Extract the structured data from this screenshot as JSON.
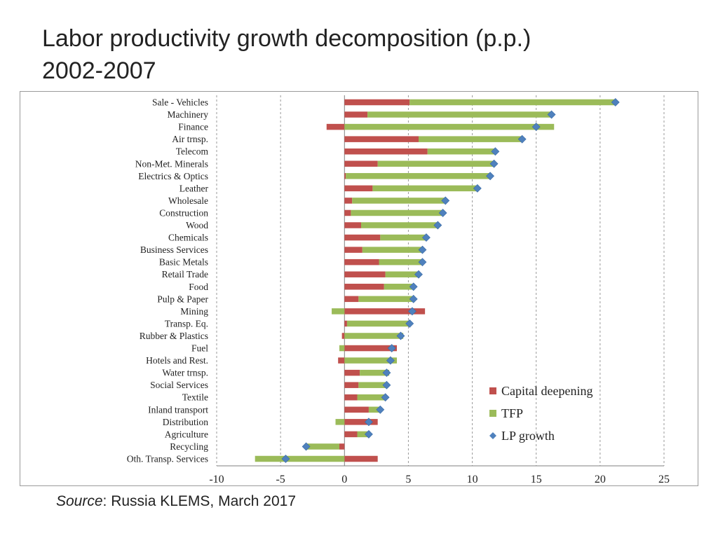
{
  "title": {
    "line1": "Labor productivity growth decomposition (p.p.)",
    "line2": "2002-2007"
  },
  "source": {
    "label": "Source",
    "text": ": Russia KLEMS, March 2017"
  },
  "colors": {
    "capital": "#c0504d",
    "tfp": "#9bbb59",
    "lp": "#4f81bd",
    "grid": "#999999",
    "axis": "#7f7f7f"
  },
  "chart_data": {
    "type": "bar",
    "orientation": "horizontal",
    "stacked": true,
    "title": "Labor productivity growth decomposition (p.p.) 2002-2007",
    "xlabel": "",
    "ylabel": "",
    "xlim": [
      -10,
      25
    ],
    "xticks": [
      -10,
      -5,
      0,
      5,
      10,
      15,
      20,
      25
    ],
    "xtick_labels": [
      "-10",
      "-5",
      "0",
      "5",
      "10",
      "15",
      "20",
      "25"
    ],
    "grid": "vertical dashed",
    "legend_position": "bottom-right",
    "categories": [
      "Sale - Vehicles",
      "Machinery",
      "Finance",
      "Air trnsp.",
      "Telecom",
      "Non-Met. Minerals",
      "Electrics & Optics",
      "Leather",
      "Wholesale",
      "Construction",
      "Wood",
      "Chemicals",
      "Business Services",
      "Basic Metals",
      "Retail Trade",
      "Food",
      "Pulp & Paper",
      "Mining",
      "Transp. Eq.",
      "Rubber & Plastics",
      "Fuel",
      "Hotels and Rest.",
      "Water trnsp.",
      "Social Services",
      "Textile",
      "Inland transport",
      "Distribution",
      "Agriculture",
      "Recycling",
      "Oth. Transp. Services"
    ],
    "series": [
      {
        "name": "Capital deepening",
        "kind": "bar",
        "values": [
          5.1,
          1.8,
          -1.4,
          5.8,
          6.5,
          2.6,
          0.1,
          2.2,
          0.6,
          0.5,
          1.3,
          2.8,
          1.4,
          2.7,
          3.2,
          3.1,
          1.1,
          6.3,
          0.2,
          -0.2,
          4.1,
          -0.5,
          1.2,
          1.1,
          1.0,
          1.9,
          2.6,
          1.0,
          -0.4,
          2.6
        ]
      },
      {
        "name": "TFP",
        "kind": "bar",
        "values": [
          16.1,
          14.4,
          16.4,
          8.1,
          5.3,
          9.1,
          11.3,
          8.2,
          7.3,
          7.2,
          6.0,
          3.6,
          4.7,
          3.4,
          2.6,
          2.3,
          4.3,
          -1.0,
          4.9,
          4.6,
          -0.4,
          4.1,
          2.3,
          2.1,
          2.2,
          0.9,
          -0.7,
          0.9,
          -2.6,
          -7.0
        ]
      },
      {
        "name": "LP growth",
        "kind": "marker",
        "values": [
          21.2,
          16.2,
          15.0,
          13.9,
          11.8,
          11.7,
          11.4,
          10.4,
          7.9,
          7.7,
          7.3,
          6.4,
          6.1,
          6.1,
          5.8,
          5.4,
          5.4,
          5.3,
          5.1,
          4.4,
          3.7,
          3.6,
          3.3,
          3.3,
          3.2,
          2.8,
          1.9,
          1.9,
          -3.0,
          -4.6
        ]
      }
    ]
  }
}
